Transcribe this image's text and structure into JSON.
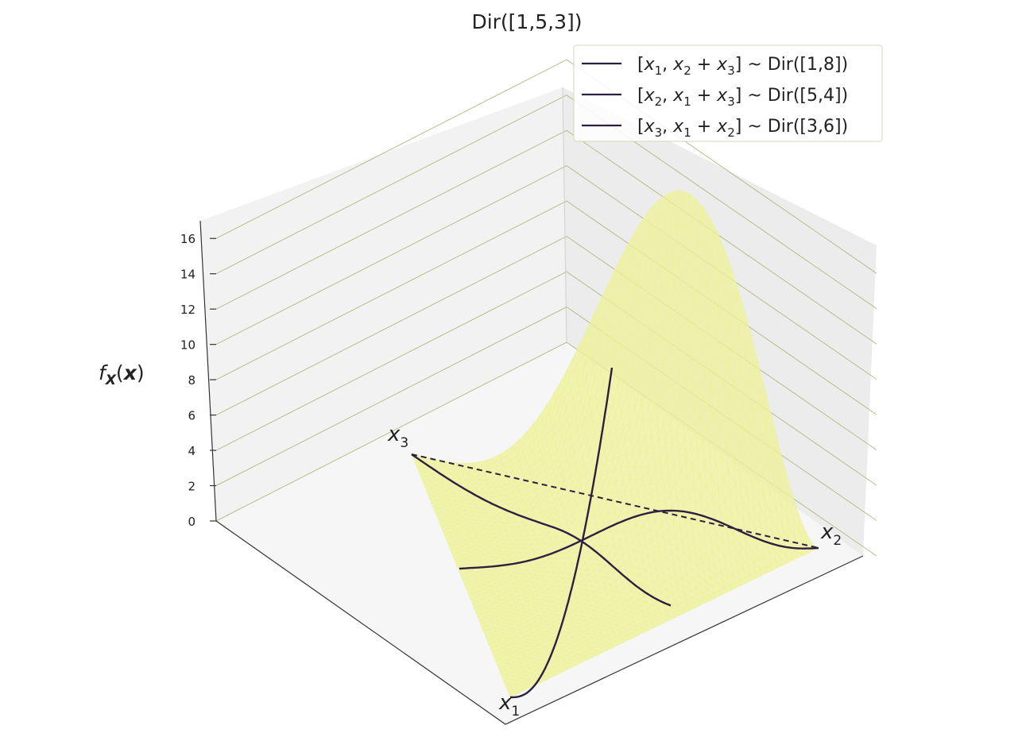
{
  "chart_data": {
    "type": "surface3d",
    "title": "Dir([1,5,3])",
    "zlabel": "f_X(x)",
    "zlabel_display": "fX(x)",
    "zlim": [
      0,
      17
    ],
    "zticks": [
      "0",
      "2",
      "4",
      "6",
      "8",
      "10",
      "12",
      "14",
      "16"
    ],
    "vertex_labels": [
      {
        "main": "x",
        "sub": "1"
      },
      {
        "main": "x",
        "sub": "2"
      },
      {
        "main": "x",
        "sub": "3"
      }
    ],
    "surface": {
      "distribution": "Dirichlet",
      "alpha": [
        1,
        5,
        3
      ],
      "peak_density": 16.9,
      "color": "#eef29a"
    },
    "series": [
      {
        "name": "[x1, x2 + x3] ~ Dir([1,8])",
        "alpha": [
          1,
          8
        ],
        "edge": "x1-x3"
      },
      {
        "name": "[x2, x1 + x3] ~ Dir([5,4])",
        "alpha": [
          5,
          4
        ],
        "edge": "x1-x2"
      },
      {
        "name": "[x3, x1 + x2] ~ Dir([3,6])",
        "alpha": [
          3,
          6
        ],
        "edge": "x3-x2"
      }
    ],
    "legend": {
      "position": "top-right",
      "entries": [
        {
          "a": "x",
          "as": "1",
          "b": "x",
          "bs": "2",
          "c": "x",
          "cs": "3",
          "dir": "Dir([1,8])"
        },
        {
          "a": "x",
          "as": "2",
          "b": "x",
          "bs": "1",
          "c": "x",
          "cs": "3",
          "dir": "Dir([5,4])"
        },
        {
          "a": "x",
          "as": "3",
          "b": "x",
          "bs": "1",
          "c": "x",
          "cs": "2",
          "dir": "Dir([3,6])"
        }
      ]
    },
    "line_color": "#2a2040",
    "grid": true
  }
}
